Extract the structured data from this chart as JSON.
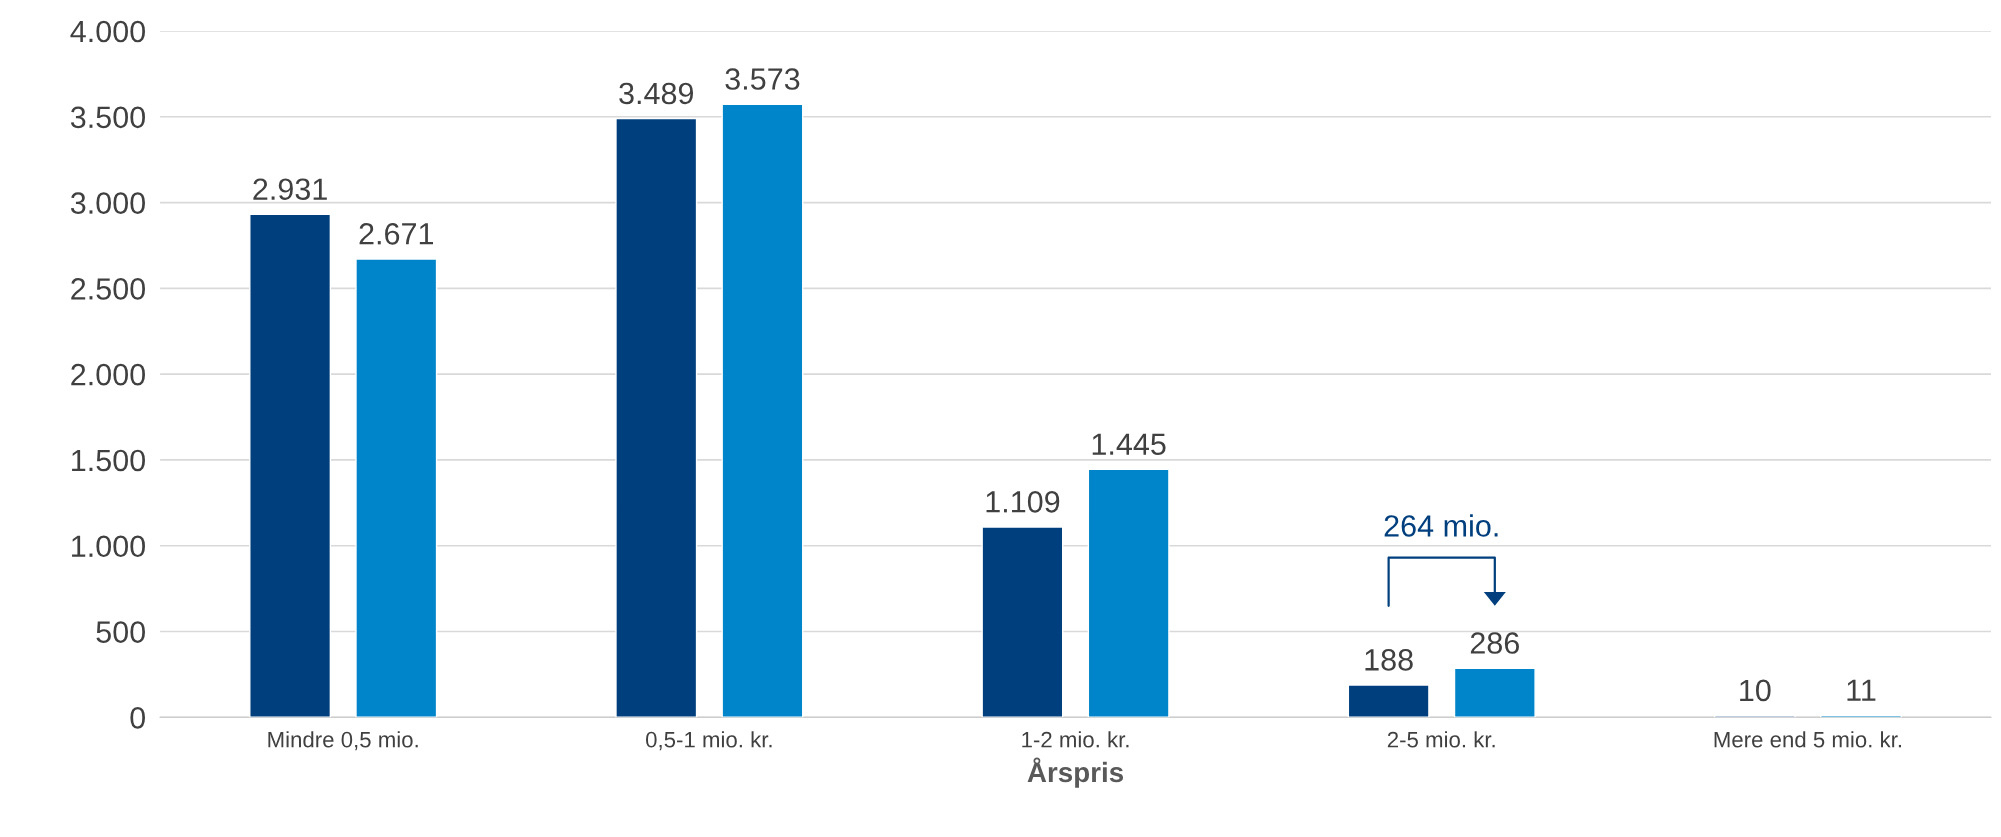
{
  "chart_data": {
    "type": "bar",
    "xlabel": "Årspris",
    "categories": [
      "Mindre 0,5 mio.",
      "0,5-1 mio. kr.",
      "1-2 mio. kr.",
      "2-5 mio. kr.",
      "Mere end 5 mio. kr."
    ],
    "series": [
      {
        "color": "#003f7d",
        "values": [
          2931,
          3489,
          1109,
          188,
          10
        ],
        "value_labels": [
          "2.931",
          "3.489",
          "1.109",
          "188",
          "10"
        ]
      },
      {
        "color": "#0085ca",
        "values": [
          2671,
          3573,
          1445,
          286,
          11
        ],
        "value_labels": [
          "2.671",
          "3.573",
          "1.445",
          "286",
          "11"
        ]
      }
    ],
    "ylim": [
      0,
      4000
    ],
    "yticks": [
      0,
      {
        "value": 500,
        "label": "500"
      },
      {
        "value": 1000,
        "label": "1.000"
      },
      {
        "value": 1500,
        "label": "1.500"
      },
      {
        "value": 2000,
        "label": "2.000"
      },
      {
        "value": 2500,
        "label": "2.500"
      },
      {
        "value": 3000,
        "label": "3.000"
      },
      {
        "value": 3500,
        "label": "3.500"
      },
      {
        "value": 4000,
        "label": "4.000"
      }
    ],
    "grid": "y",
    "annotations": [
      "264 mio."
    ]
  }
}
